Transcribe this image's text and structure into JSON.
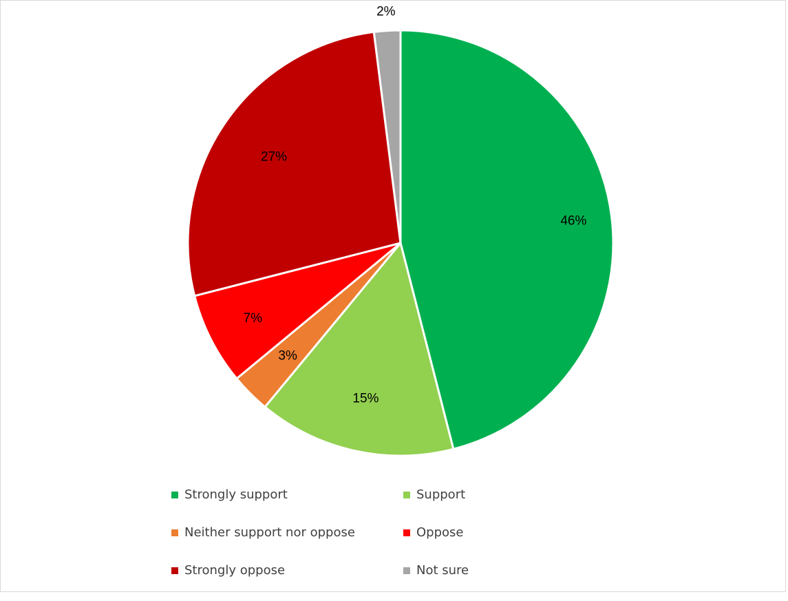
{
  "chart_data": {
    "type": "pie",
    "title": "",
    "start_angle_deg": 0,
    "direction": "clockwise",
    "legend_position": "bottom",
    "slices": [
      {
        "label": "Strongly support",
        "value": 46,
        "data_label": "46%",
        "color": "#00b050"
      },
      {
        "label": "Support",
        "value": 15,
        "data_label": "15%",
        "color": "#92d050"
      },
      {
        "label": "Neither support nor oppose",
        "value": 3,
        "data_label": "3%",
        "color": "#ed7d31"
      },
      {
        "label": "Oppose",
        "value": 7,
        "data_label": "7%",
        "color": "#ff0000"
      },
      {
        "label": "Strongly oppose",
        "value": 27,
        "data_label": "27%",
        "color": "#c00000"
      },
      {
        "label": "Not sure",
        "value": 2,
        "data_label": "2%",
        "color": "#a6a6a6"
      }
    ]
  }
}
